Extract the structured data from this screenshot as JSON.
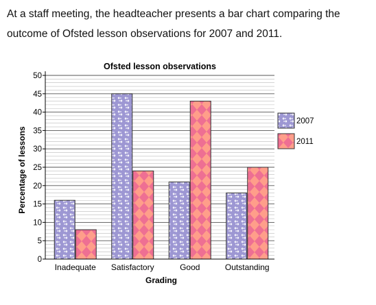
{
  "intro_text": "At a staff meeting, the headteacher presents a bar chart comparing the outcome of Ofsted lesson observations for 2007 and 2011.",
  "chart_data": {
    "type": "bar",
    "title": "Ofsted lesson observations",
    "xlabel": "Grading",
    "ylabel": "Percentage of lessons",
    "categories": [
      "Inadequate",
      "Satisfactory",
      "Good",
      "Outstanding"
    ],
    "series": [
      {
        "name": "2007",
        "values": [
          16,
          45,
          21,
          18
        ],
        "color": "#9b94cf"
      },
      {
        "name": "2011",
        "values": [
          8,
          24,
          43,
          25
        ],
        "color": "#f0788c"
      }
    ],
    "ylim": [
      0,
      50
    ],
    "y_ticks": [
      "0",
      "5",
      "10",
      "15",
      "20",
      "25",
      "30",
      "35",
      "40",
      "45",
      "50"
    ],
    "grid": true,
    "legend_position": "right"
  }
}
